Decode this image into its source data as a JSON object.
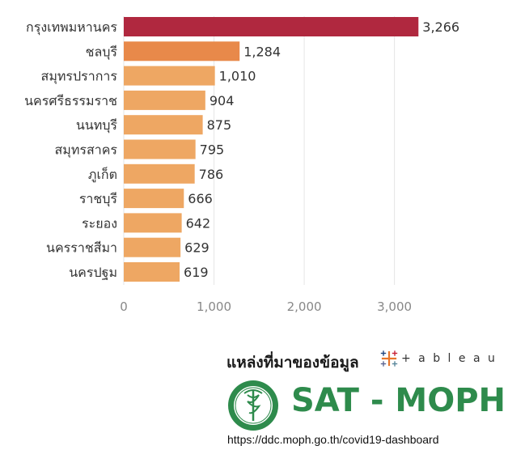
{
  "chart_data": {
    "type": "bar",
    "orientation": "horizontal",
    "categories": [
      "กรุงเทพมหานคร",
      "ชลบุรี",
      "สมุทรปราการ",
      "นครศรีธรรมราช",
      "นนทบุรี",
      "สมุทรสาคร",
      "ภูเก็ต",
      "ราชบุรี",
      "ระยอง",
      "นครราชสีมา",
      "นครปฐม"
    ],
    "values": [
      3266,
      1284,
      1010,
      904,
      875,
      795,
      786,
      666,
      642,
      629,
      619
    ],
    "value_labels": [
      "3,266",
      "1,284",
      "1,010",
      "904",
      "875",
      "795",
      "786",
      "666",
      "642",
      "629",
      "619"
    ],
    "xlim": [
      0,
      3900
    ],
    "xticks": [
      0,
      1000,
      2000,
      3000
    ],
    "xtick_labels": [
      "0",
      "1,000",
      "2,000",
      "3,000"
    ],
    "grid": true,
    "colors": {
      "top_bar": "#b0283f",
      "second_bar": "#e8894a",
      "other_bars": "#eea763",
      "grid": "#e6e6e6"
    }
  },
  "source": {
    "title": "แหล่งที่มาของข้อมูล",
    "tableau_label": "+ a b l e a u",
    "tableau_icon": "tableau-plus-icon",
    "org_name": "SAT - MOPH",
    "org_logo": "moph-seal-icon",
    "url": "https://ddc.moph.go.th/covid19-dashboard"
  }
}
